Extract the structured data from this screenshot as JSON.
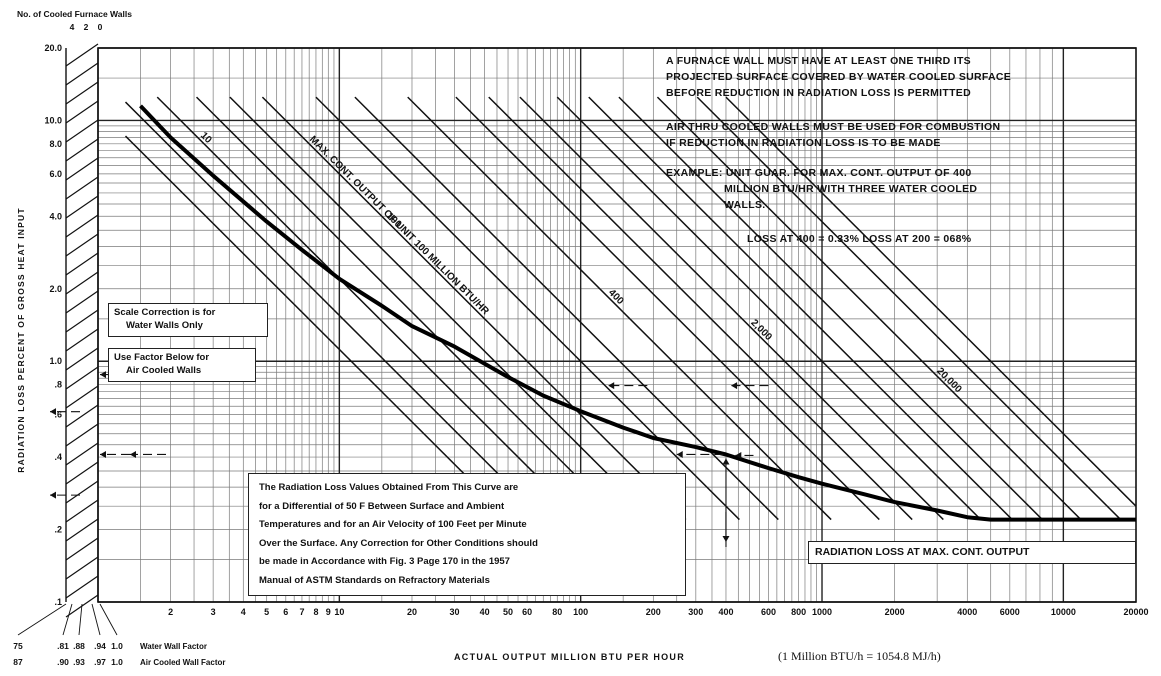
{
  "chart_data": {
    "type": "line",
    "ylabel": "RADIATION LOSS PERCENT OF GROSS HEAT INPUT",
    "xlabel": "ACTUAL OUTPUT MILLION BTU PER HOUR",
    "unit_note": "(1 Million BTU/h = 1054.8 MJ/h)",
    "x_scale": "log",
    "y_scale": "log",
    "xlim": [
      1,
      20000
    ],
    "ylim": [
      0.1,
      20
    ],
    "grid": true,
    "x_ticks": [
      {
        "v": 2,
        "label": "2"
      },
      {
        "v": 3,
        "label": "3"
      },
      {
        "v": 4,
        "label": "4"
      },
      {
        "v": 5,
        "label": "5"
      },
      {
        "v": 6,
        "label": "6"
      },
      {
        "v": 7,
        "label": "7"
      },
      {
        "v": 8,
        "label": "8"
      },
      {
        "v": 9,
        "label": "9"
      },
      {
        "v": 10,
        "label": "10"
      },
      {
        "v": 20,
        "label": "20"
      },
      {
        "v": 30,
        "label": "30"
      },
      {
        "v": 40,
        "label": "40"
      },
      {
        "v": 50,
        "label": "50"
      },
      {
        "v": 60,
        "label": "60"
      },
      {
        "v": 80,
        "label": "80"
      },
      {
        "v": 100,
        "label": "100"
      },
      {
        "v": 200,
        "label": "200"
      },
      {
        "v": 300,
        "label": "300"
      },
      {
        "v": 400,
        "label": "400"
      },
      {
        "v": 600,
        "label": "600"
      },
      {
        "v": 800,
        "label": "800"
      },
      {
        "v": 1000,
        "label": "1000"
      },
      {
        "v": 2000,
        "label": "2000"
      },
      {
        "v": 4000,
        "label": "4000"
      },
      {
        "v": 6000,
        "label": "6000"
      },
      {
        "v": 10000,
        "label": "10000"
      },
      {
        "v": 20000,
        "label": "20000"
      }
    ],
    "y_ticks": [
      {
        "v": 0.1,
        "label": ".1"
      },
      {
        "v": 0.2,
        "label": ".2"
      },
      {
        "v": 0.4,
        "label": ".4"
      },
      {
        "v": 0.6,
        "label": ".6"
      },
      {
        "v": 0.8,
        "label": ".8"
      },
      {
        "v": 1.0,
        "label": "1.0"
      },
      {
        "v": 2.0,
        "label": "2.0"
      },
      {
        "v": 4.0,
        "label": "4.0"
      },
      {
        "v": 6.0,
        "label": "6.0"
      },
      {
        "v": 8.0,
        "label": "8.0"
      },
      {
        "v": 10.0,
        "label": "10.0"
      },
      {
        "v": 20.0,
        "label": "20.0"
      }
    ],
    "main_curve": {
      "label": "RADIATION LOSS AT MAX. CONT. OUTPUT",
      "x": [
        1.5,
        2,
        3,
        5,
        7,
        10,
        15,
        20,
        30,
        50,
        70,
        100,
        150,
        200,
        300,
        400,
        600,
        800,
        1000,
        1500,
        2000,
        3000,
        4000,
        5000,
        6000,
        8000,
        10000,
        15000,
        20000
      ],
      "y": [
        11.5,
        8.5,
        5.9,
        3.8,
        2.9,
        2.2,
        1.7,
        1.4,
        1.15,
        0.86,
        0.72,
        0.62,
        0.53,
        0.48,
        0.44,
        0.41,
        0.36,
        0.33,
        0.31,
        0.28,
        0.26,
        0.24,
        0.225,
        0.22,
        0.22,
        0.22,
        0.22,
        0.22,
        0.22
      ]
    },
    "output_lines": {
      "slope": -1,
      "lines": [
        {
          "y_at_x1": 11.2,
          "end_output": 2,
          "label": ""
        },
        {
          "y_at_x1": 15.5,
          "end_output": 3.5,
          "label": ""
        },
        {
          "y_at_x1": 22,
          "end_output": 5,
          "label": "10"
        },
        {
          "y_at_x1": 32,
          "end_output": 10,
          "label": ""
        },
        {
          "y_at_x1": 44,
          "end_output": 20,
          "label": ""
        },
        {
          "y_at_x1": 60,
          "end_output": 30,
          "label": "100"
        },
        {
          "y_at_x1": 100,
          "end_output": 60,
          "label": ""
        },
        {
          "y_at_x1": 145,
          "end_output": 100,
          "label": ""
        },
        {
          "y_at_x1": 240,
          "end_output": 250,
          "label": "400"
        },
        {
          "y_at_x1": 380,
          "end_output": 400,
          "label": ""
        },
        {
          "y_at_x1": 520,
          "end_output": 600,
          "label": ""
        },
        {
          "y_at_x1": 700,
          "end_output": 1000,
          "label": "2,000"
        },
        {
          "y_at_x1": 1000,
          "end_output": 1500,
          "label": ""
        },
        {
          "y_at_x1": 1350,
          "end_output": 2000,
          "label": ""
        },
        {
          "y_at_x1": 1800,
          "end_output": 3000,
          "label": ""
        },
        {
          "y_at_x1": 2600,
          "end_output": 6000,
          "label": "20,000"
        },
        {
          "y_at_x1": 3800,
          "end_output": 10000,
          "label": ""
        },
        {
          "y_at_x1": 5000,
          "end_output": 15000,
          "label": ""
        }
      ],
      "series_label": "MAX. CONT. OUTPUT OF UNIT 100 MILLION BTU/HR"
    },
    "furnace_walls_scale": {
      "title": "No. of Cooled Furnace Walls",
      "labels": [
        "4",
        "2",
        "0"
      ]
    },
    "factor_scales": [
      {
        "name": "Water Wall Factor",
        "values": [
          "75",
          ".81",
          ".88",
          ".94",
          "1.0"
        ]
      },
      {
        "name": "Air Cooled Wall Factor",
        "values": [
          "87",
          ".90",
          ".93",
          ".97",
          "1.0"
        ]
      }
    ]
  },
  "notes": {
    "furnace_rule": [
      "A FURNACE WALL MUST HAVE AT LEAST ONE THIRD ITS",
      "PROJECTED SURFACE COVERED BY WATER COOLED SURFACE",
      "BEFORE REDUCTION IN RADIATION LOSS IS PERMITTED"
    ],
    "air_rule": [
      "AIR THRU COOLED WALLS MUST BE USED FOR COMBUSTION",
      "IF REDUCTION IN RADIATION LOSS IS TO BE MADE"
    ],
    "example": [
      "EXAMPLE:  UNIT GUAR. FOR MAX. CONT. OUTPUT OF 400",
      "MILLION BTU/HR WITH THREE WATER COOLED",
      "WALLS."
    ],
    "loss_line": "LOSS AT 400 = 0.33%  LOSS AT 200 = 068%"
  },
  "boxes": {
    "scale_correction": [
      "Scale Correction is for",
      "Water Walls Only"
    ],
    "use_factor": [
      "Use Factor Below for",
      "Air Cooled Walls"
    ],
    "conditions": [
      "The Radiation Loss Values Obtained From This Curve are",
      "for a Differential of 50 F Between Surface and Ambient",
      "Temperatures and for an Air Velocity of 100 Feet per Minute",
      "Over the Surface.  Any Correction for Other Conditions should",
      "be made in Accordance with Fig. 3  Page 170 in the 1957",
      "Manual of ASTM Standards on Refractory Materials"
    ]
  }
}
